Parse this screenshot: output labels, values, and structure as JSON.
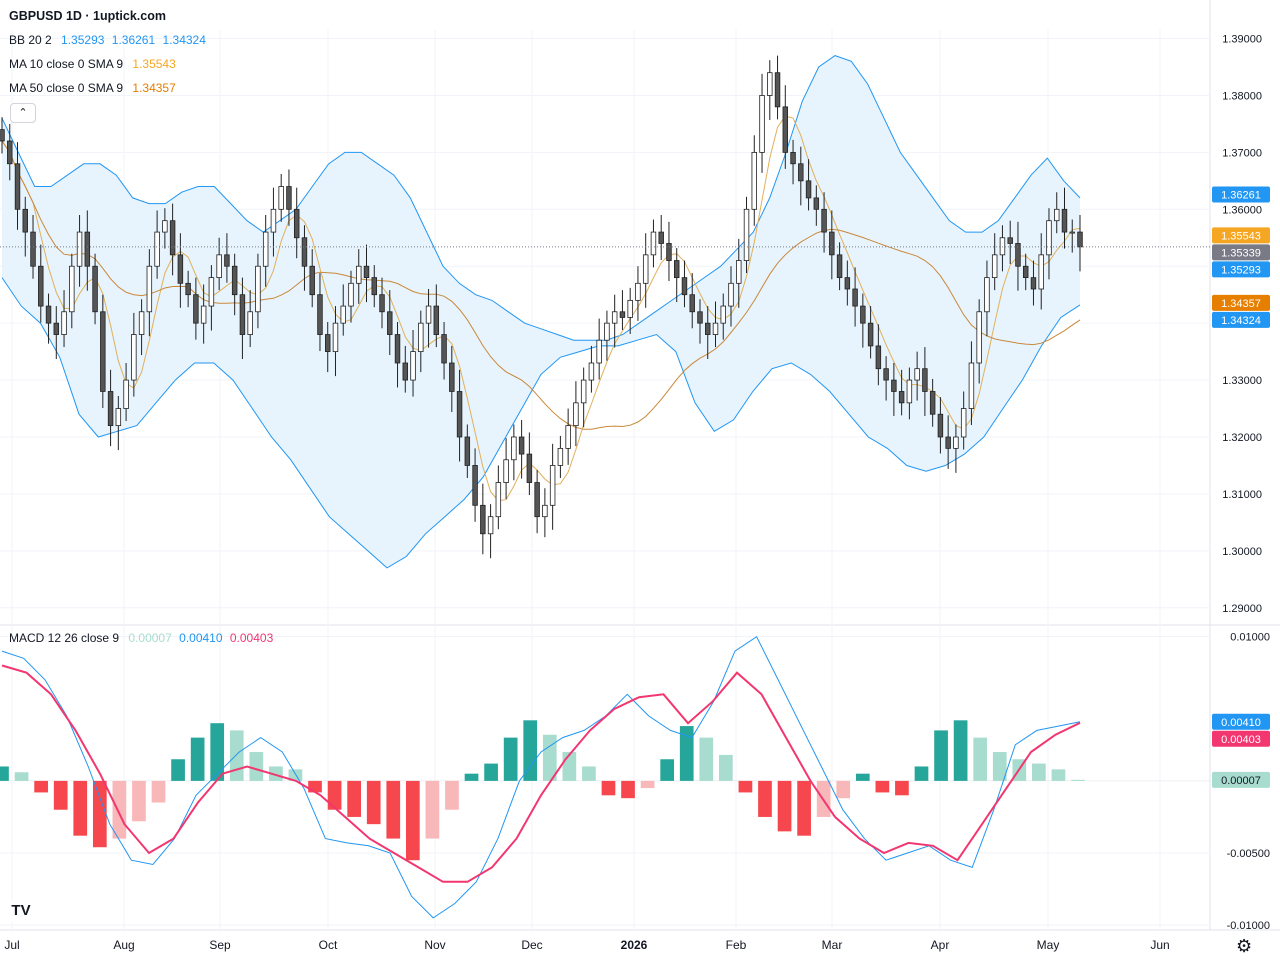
{
  "header": {
    "title": "GBPUSD 1D · 1uptick.com",
    "collapse_icon": "chevron-up-icon",
    "legends": [
      {
        "name": "BB 20 2",
        "values": [
          "1.35293",
          "1.36261",
          "1.34324"
        ],
        "colors": [
          "#2196f3",
          "#2196f3",
          "#2196f3"
        ]
      },
      {
        "name": "MA 10 close 0 SMA 9",
        "values": [
          "1.35543"
        ],
        "colors": [
          "#f5a623"
        ]
      },
      {
        "name": "MA 50 close 0 SMA 9",
        "values": [
          "1.34357"
        ],
        "colors": [
          "#e67e00"
        ]
      }
    ],
    "macd_legend": {
      "name": "MACD 12 26 close 9",
      "values": [
        "0.00007",
        "0.00410",
        "0.00403"
      ],
      "colors": [
        "#a8dccf",
        "#2196f3",
        "#f23670"
      ]
    }
  },
  "colors": {
    "candle_up": "#ffffff",
    "candle_down": "#555555",
    "candle_border": "#222222",
    "bb_line": "#2196f3",
    "bb_fill": "#e3f2fd",
    "ma10": "#e0b05a",
    "ma50": "#c9883a",
    "macd_line": "#2196f3",
    "signal_line": "#f23670",
    "hist_up_strong": "#26a69a",
    "hist_up_weak": "#a8dccf",
    "hist_down_strong": "#f5474d",
    "hist_down_weak": "#f8b7b9"
  },
  "chart_data": [
    {
      "type": "candlestick",
      "title": "GBPUSD 1D",
      "y_axis": {
        "ticks": [
          "1.39000",
          "1.38000",
          "1.37000",
          "1.36000",
          "1.35000",
          "1.34000",
          "1.33000",
          "1.32000",
          "1.31000",
          "1.30000",
          "1.29000"
        ],
        "ylim": [
          1.2875,
          1.3915
        ]
      },
      "x_axis": {
        "ticks": [
          "Jul",
          "Aug",
          "Sep",
          "Oct",
          "Nov",
          "Dec",
          "2026",
          "Feb",
          "Mar",
          "Apr",
          "May",
          "Jun"
        ]
      },
      "price_labels": [
        {
          "text": "1.36261",
          "value": 1.36261,
          "color": "#2196f3"
        },
        {
          "text": "1.35543",
          "value": 1.35543,
          "color": "#f5a623"
        },
        {
          "text": "1.35339",
          "value": 1.35339,
          "color": "#787b86"
        },
        {
          "text": "1.35293",
          "value": 1.35293,
          "color": "#2196f3"
        },
        {
          "text": "1.34357",
          "value": 1.34357,
          "color": "#e67e00"
        },
        {
          "text": "1.34324",
          "value": 1.34324,
          "color": "#2196f3"
        }
      ],
      "last_price": 1.35339,
      "close_series": [
        1.372,
        1.368,
        1.36,
        1.356,
        1.35,
        1.343,
        1.34,
        1.338,
        1.342,
        1.35,
        1.356,
        1.35,
        1.342,
        1.328,
        1.322,
        1.325,
        1.33,
        1.338,
        1.342,
        1.35,
        1.356,
        1.358,
        1.352,
        1.347,
        1.345,
        1.34,
        1.343,
        1.348,
        1.352,
        1.35,
        1.345,
        1.338,
        1.342,
        1.35,
        1.356,
        1.36,
        1.364,
        1.36,
        1.355,
        1.35,
        1.345,
        1.338,
        1.335,
        1.34,
        1.343,
        1.347,
        1.35,
        1.348,
        1.345,
        1.342,
        1.338,
        1.333,
        1.33,
        1.335,
        1.34,
        1.343,
        1.338,
        1.333,
        1.328,
        1.32,
        1.315,
        1.308,
        1.303,
        1.306,
        1.312,
        1.316,
        1.32,
        1.317,
        1.312,
        1.306,
        1.308,
        1.315,
        1.318,
        1.322,
        1.326,
        1.33,
        1.333,
        1.337,
        1.34,
        1.342,
        1.341,
        1.344,
        1.347,
        1.352,
        1.356,
        1.354,
        1.351,
        1.348,
        1.345,
        1.342,
        1.34,
        1.338,
        1.34,
        1.343,
        1.347,
        1.351,
        1.36,
        1.37,
        1.38,
        1.384,
        1.378,
        1.37,
        1.368,
        1.365,
        1.362,
        1.36,
        1.356,
        1.352,
        1.348,
        1.346,
        1.343,
        1.34,
        1.336,
        1.332,
        1.33,
        1.328,
        1.326,
        1.33,
        1.332,
        1.328,
        1.324,
        1.32,
        1.318,
        1.32,
        1.325,
        1.333,
        1.342,
        1.348,
        1.352,
        1.355,
        1.354,
        1.35,
        1.348,
        1.346,
        1.352,
        1.358,
        1.36,
        1.356,
        1.356,
        1.3534
      ],
      "bb_upper": [
        1.376,
        1.37,
        1.364,
        1.364,
        1.366,
        1.368,
        1.368,
        1.366,
        1.362,
        1.361,
        1.361,
        1.363,
        1.364,
        1.364,
        1.361,
        1.358,
        1.356,
        1.358,
        1.36,
        1.364,
        1.368,
        1.37,
        1.37,
        1.368,
        1.366,
        1.362,
        1.356,
        1.35,
        1.347,
        1.345,
        1.344,
        1.342,
        1.34,
        1.339,
        1.338,
        1.337,
        1.337,
        1.337,
        1.338,
        1.34,
        1.342,
        1.344,
        1.346,
        1.348,
        1.35,
        1.353,
        1.356,
        1.362,
        1.37,
        1.379,
        1.385,
        1.387,
        1.386,
        1.382,
        1.376,
        1.37,
        1.366,
        1.362,
        1.358,
        1.356,
        1.356,
        1.358,
        1.362,
        1.366,
        1.369,
        1.365,
        1.362
      ],
      "bb_lower": [
        1.348,
        1.343,
        1.34,
        1.334,
        1.324,
        1.32,
        1.321,
        1.322,
        1.326,
        1.33,
        1.333,
        1.333,
        1.33,
        1.325,
        1.32,
        1.316,
        1.311,
        1.306,
        1.303,
        1.3,
        1.297,
        1.299,
        1.303,
        1.306,
        1.309,
        1.313,
        1.319,
        1.325,
        1.331,
        1.334,
        1.335,
        1.336,
        1.336,
        1.337,
        1.338,
        1.335,
        1.326,
        1.321,
        1.323,
        1.328,
        1.332,
        1.333,
        1.331,
        1.328,
        1.324,
        1.32,
        1.318,
        1.315,
        1.314,
        1.315,
        1.317,
        1.32,
        1.325,
        1.33,
        1.336,
        1.341,
        1.3432
      ]
    },
    {
      "type": "bar+line",
      "title": "MACD 12 26 close 9",
      "y_axis": {
        "ticks": [
          "0.01000",
          "-0.00500",
          "-0.01000"
        ],
        "ylim": [
          -0.0102,
          0.0106
        ]
      },
      "price_labels": [
        {
          "text": "0.00410",
          "value": 0.0041,
          "color": "#2196f3"
        },
        {
          "text": "0.00403",
          "value": 0.00403,
          "color": "#f23670"
        },
        {
          "text": "0.00007",
          "value": 7e-05,
          "color": "#a8dccf"
        }
      ],
      "macd": [
        0.009,
        0.0085,
        0.007,
        0.0045,
        0.001,
        -0.003,
        -0.0055,
        -0.0058,
        -0.004,
        -0.001,
        0.0005,
        0.002,
        0.003,
        0.002,
        -0.0005,
        -0.004,
        -0.0043,
        -0.0045,
        -0.005,
        -0.008,
        -0.0095,
        -0.0085,
        -0.007,
        -0.004,
        0.0,
        0.002,
        0.003,
        0.0035,
        0.0045,
        0.006,
        0.0045,
        0.0035,
        0.003,
        0.0055,
        0.009,
        0.01,
        0.007,
        0.004,
        0.001,
        -0.002,
        -0.004,
        -0.0055,
        -0.005,
        -0.0045,
        -0.0055,
        -0.006,
        -0.002,
        0.0025,
        0.0035,
        0.0038,
        0.0041
      ],
      "signal": [
        0.008,
        0.0075,
        0.006,
        0.0035,
        0.0005,
        -0.003,
        -0.005,
        -0.004,
        -0.0015,
        0.0005,
        0.001,
        0.0005,
        0.0,
        -0.001,
        -0.0025,
        -0.004,
        -0.005,
        -0.006,
        -0.007,
        -0.007,
        -0.006,
        -0.004,
        -0.001,
        0.0015,
        0.0035,
        0.005,
        0.0058,
        0.006,
        0.004,
        0.0055,
        0.0075,
        0.006,
        0.003,
        0.0,
        -0.0025,
        -0.004,
        -0.005,
        -0.0043,
        -0.0045,
        -0.0055,
        -0.003,
        -0.0005,
        0.002,
        0.0032,
        0.00403
      ],
      "histogram": [
        0.001,
        0.0006,
        -0.0008,
        -0.002,
        -0.0038,
        -0.0046,
        -0.004,
        -0.0028,
        -0.0015,
        0.0015,
        0.003,
        0.004,
        0.0035,
        0.002,
        0.001,
        0.0008,
        -0.0008,
        -0.002,
        -0.0025,
        -0.003,
        -0.004,
        -0.0055,
        -0.004,
        -0.002,
        0.0005,
        0.0012,
        0.003,
        0.0042,
        0.0032,
        0.002,
        0.001,
        -0.001,
        -0.0012,
        -0.0005,
        0.0015,
        0.0038,
        0.003,
        0.0018,
        -0.0008,
        -0.0025,
        -0.0035,
        -0.0038,
        -0.0025,
        -0.0012,
        0.0005,
        -0.0008,
        -0.001,
        0.001,
        0.0035,
        0.0042,
        0.003,
        0.002,
        0.0015,
        0.0012,
        0.0008,
        7e-05
      ]
    }
  ]
}
